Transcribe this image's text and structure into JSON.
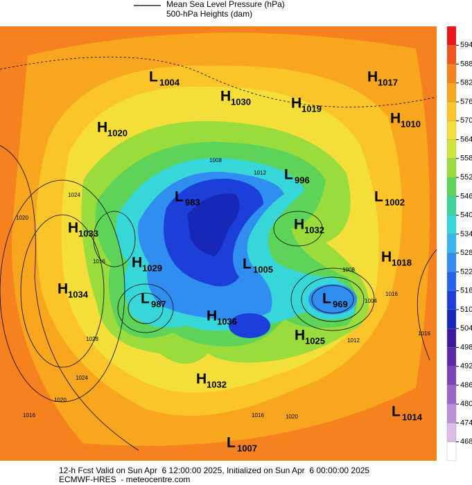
{
  "legend": {
    "items": [
      "Mean Sea Level Pressure (hPa)",
      "500-hPa Heights (dam)"
    ]
  },
  "colorbar": {
    "ticks": [
      594,
      588,
      582,
      576,
      570,
      564,
      558,
      552,
      546,
      540,
      534,
      528,
      522,
      516,
      510,
      504,
      498,
      492,
      486,
      480,
      474,
      468
    ],
    "colors": [
      "#e8161a",
      "#f2541d",
      "#f5821f",
      "#f9a61f",
      "#fbc52a",
      "#f4df3a",
      "#cfe53a",
      "#9adc3c",
      "#5dd35a",
      "#3dd39b",
      "#37d7d9",
      "#38b6f0",
      "#2f8ef0",
      "#2464e6",
      "#1c3fd9",
      "#1727b8",
      "#3b1aa0",
      "#5a2aa8",
      "#7a44b8",
      "#9b66c8",
      "#bb90d8",
      "#dcbde8",
      "#ffffff"
    ]
  },
  "centers": [
    {
      "kind": "L",
      "value": 1004
    },
    {
      "kind": "H",
      "value": 1030
    },
    {
      "kind": "H",
      "value": 1019
    },
    {
      "kind": "H",
      "value": 1017
    },
    {
      "kind": "H",
      "value": 1010
    },
    {
      "kind": "H",
      "value": 1020
    },
    {
      "kind": "L",
      "value": 996
    },
    {
      "kind": "L",
      "value": 983
    },
    {
      "kind": "L",
      "value": 1002
    },
    {
      "kind": "H",
      "value": 1033
    },
    {
      "kind": "H",
      "value": 1032
    },
    {
      "kind": "H",
      "value": 1029
    },
    {
      "kind": "L",
      "value": 1005
    },
    {
      "kind": "H",
      "value": 1018
    },
    {
      "kind": "H",
      "value": 1034
    },
    {
      "kind": "L",
      "value": 987
    },
    {
      "kind": "L",
      "value": 969
    },
    {
      "kind": "H",
      "value": 1036
    },
    {
      "kind": "H",
      "value": 1025
    },
    {
      "kind": "H",
      "value": 1032
    },
    {
      "kind": "L",
      "value": 1014
    },
    {
      "kind": "L",
      "value": 1007
    }
  ],
  "isobar_labels": [
    1008,
    1012,
    1024,
    1020,
    1016,
    1028,
    1024,
    1020,
    1016,
    1008,
    1004,
    1016,
    1016,
    1012,
    1020,
    1016
  ],
  "footer": {
    "line1": "12-h Fcst Valid on Sun Apr  6 12:00:00 2025, Initialized on Sun Apr  6 00:00:00 2025",
    "line2": "ECMWF-HRES  - meteocentre.com"
  }
}
